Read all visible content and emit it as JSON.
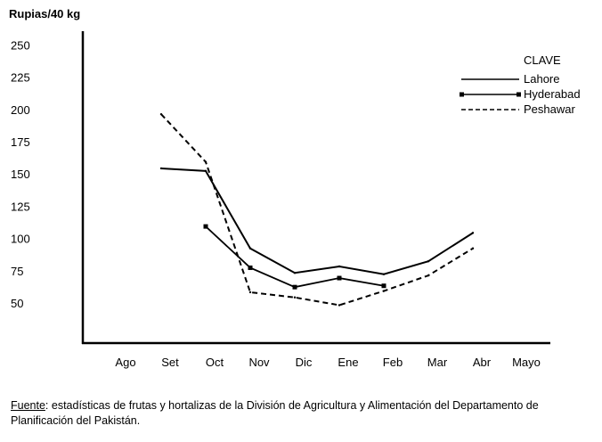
{
  "chart_data": {
    "type": "line",
    "ylabel": "Rupias/40 kg",
    "ylim": [
      19,
      261
    ],
    "yticks": [
      250,
      225,
      200,
      175,
      150,
      125,
      100,
      75,
      50
    ],
    "categories": [
      "Ago",
      "Set",
      "Oct",
      "Nov",
      "Dic",
      "Ene",
      "Feb",
      "Mar",
      "Abr",
      "Mayo"
    ],
    "grid": false,
    "legend_title": "CLAVE",
    "legend_position": "top-right",
    "series": [
      {
        "name": "Lahore",
        "style": "solid",
        "values": [
          null,
          155,
          153,
          93,
          74,
          79,
          73,
          83,
          105,
          null
        ]
      },
      {
        "name": "Hyderabad",
        "style": "dash-dot",
        "values": [
          null,
          null,
          110,
          78,
          63,
          70,
          64,
          null,
          null,
          null
        ]
      },
      {
        "name": "Peshawar",
        "style": "dashed",
        "values": [
          null,
          197,
          160,
          59,
          55,
          49,
          60,
          72,
          93,
          null
        ]
      }
    ]
  },
  "source": {
    "label": "Fuente",
    "text": ": estadísticas de frutas y hortalizas de la División de Agricultura y Alimentación del Departamento de Planificación del Pakistán."
  }
}
